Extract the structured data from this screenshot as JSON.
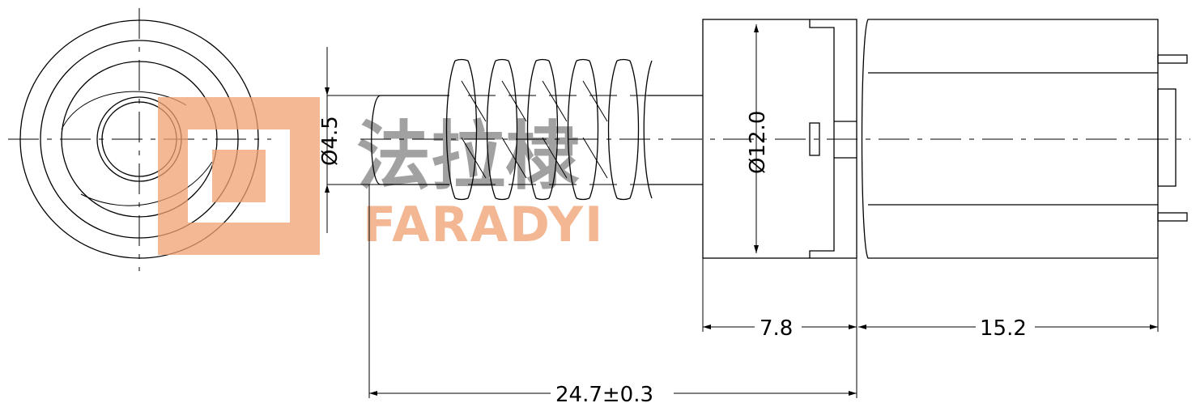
{
  "watermark": {
    "chinese_name": "法拉棣",
    "english_name": "FARADYI",
    "logo_color": "#f0a070"
  },
  "dimensions": {
    "shaft_diameter": "Ø4.5",
    "body_diameter": "Ø12.0",
    "gearbox_length": "7.8",
    "motor_length": "15.2",
    "overall_length": "24.7±0.3"
  }
}
